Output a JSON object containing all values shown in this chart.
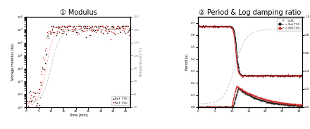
{
  "title1": "① Modulus",
  "title2": "② Period & Log damping ratio",
  "ylabel1": "Storage modulus (Pa)",
  "ylabel2_left": "Period (s)",
  "ylabel_right_temp": "Temperature (°C)",
  "ylabel2_right_ldr": "Log damping ratio (LDR)",
  "xlabel1": "Time (min)",
  "xlim1": [
    0,
    42
  ],
  "xlim2": [
    0,
    31
  ],
  "ylim1_lo": 10,
  "ylim1_hi": 100000000.0,
  "ylim_temp_lo": 20,
  "ylim_temp_hi": 160,
  "ylim2_p_lo": 0.0,
  "ylim2_p_hi": 0.75,
  "ylim2_ldr_lo": 0.0,
  "ylim2_ldr_hi": 1.0,
  "xticks1": [
    0,
    5,
    10,
    15,
    20,
    25,
    30,
    35,
    40
  ],
  "xticks2": [
    0,
    5,
    10,
    15,
    20,
    25,
    30
  ],
  "yticks2_p": [
    0.0,
    0.1,
    0.2,
    0.3,
    0.4,
    0.5,
    0.6,
    0.7
  ],
  "yticks2_ldr": [
    0.0,
    0.2,
    0.4,
    0.6,
    0.8,
    1.0
  ],
  "yticks_temp": [
    20,
    40,
    60,
    80,
    100,
    120,
    140,
    160
  ],
  "color_black": "#111111",
  "color_red": "#cc2222",
  "color_temp_gray": "#cccccc",
  "color_temp_pink": "#ffbbbb",
  "legend1_labels": [
    "Ref. T30",
    "Ref. T50"
  ],
  "legend2_header": "P    LDR",
  "legend2_labels": [
    "Ref T30",
    "Ref T50"
  ]
}
